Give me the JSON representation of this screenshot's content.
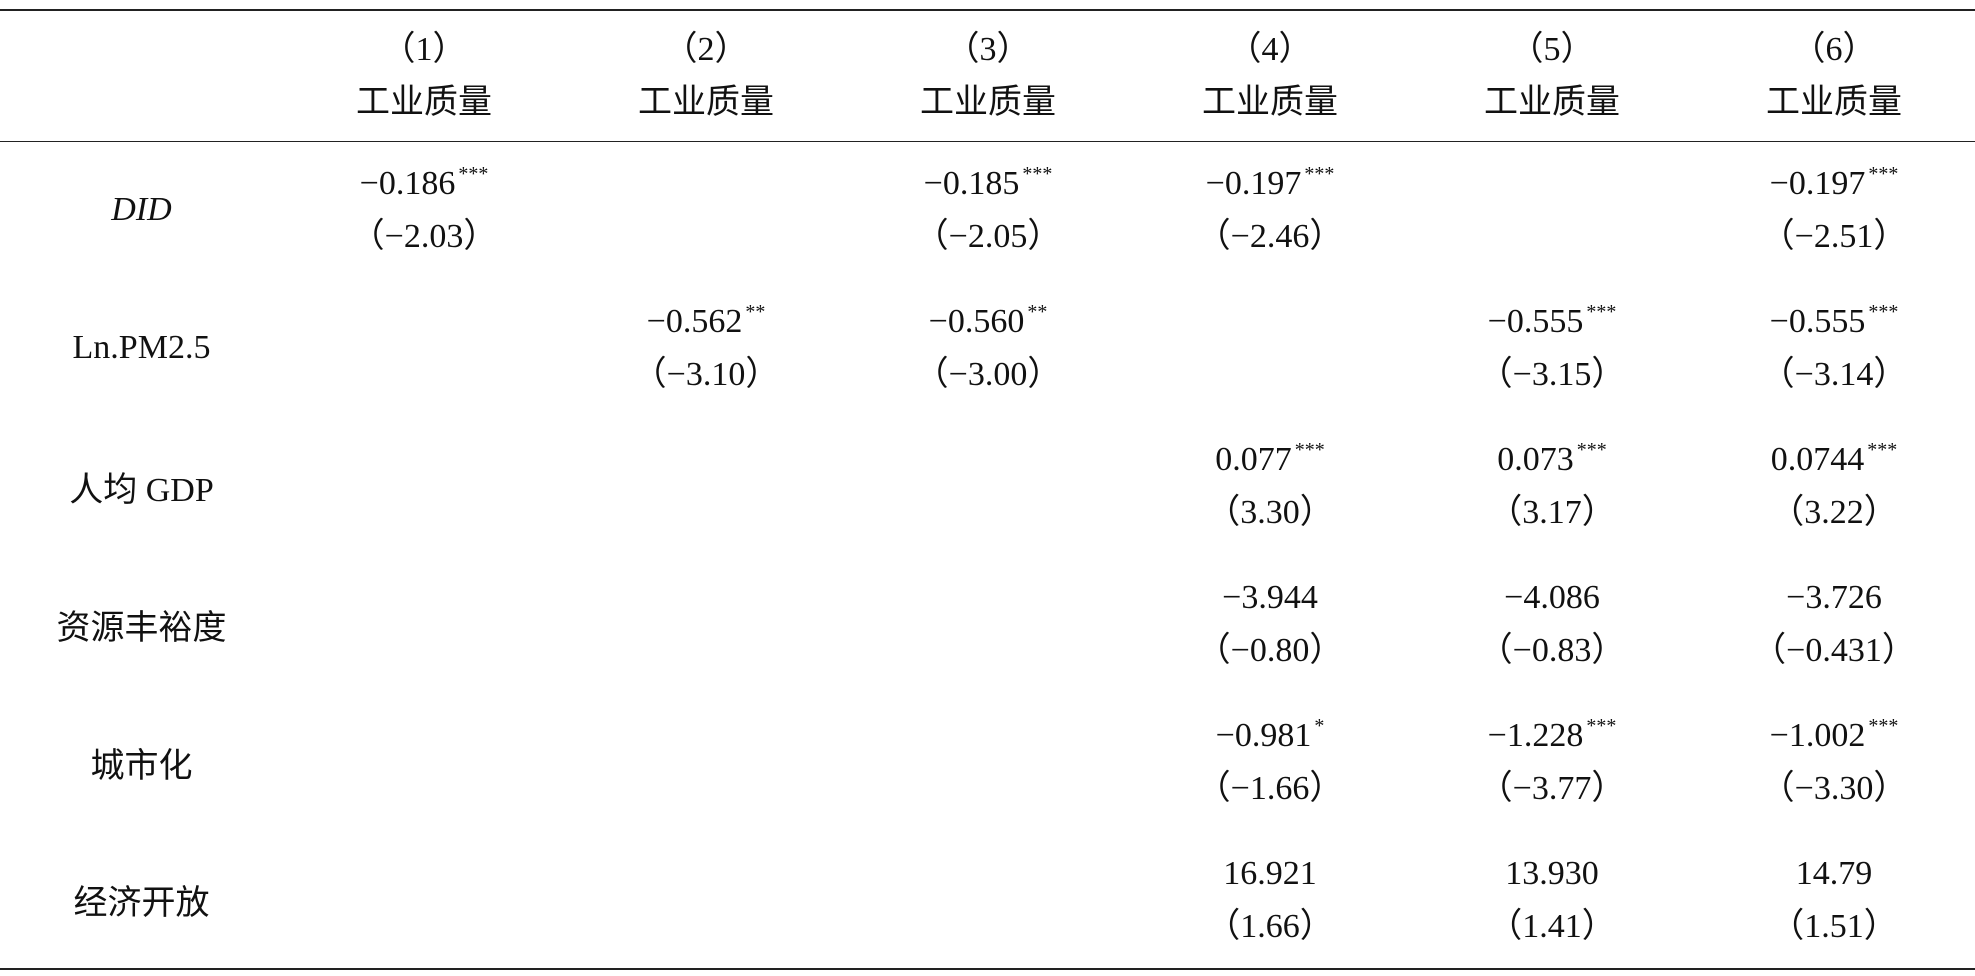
{
  "header": {
    "columns": [
      {
        "number": "（1）",
        "label": "工业质量"
      },
      {
        "number": "（2）",
        "label": "工业质量"
      },
      {
        "number": "（3）",
        "label": "工业质量"
      },
      {
        "number": "（4）",
        "label": "工业质量"
      },
      {
        "number": "（5）",
        "label": "工业质量"
      },
      {
        "number": "（6）",
        "label": "工业质量"
      }
    ]
  },
  "rows": [
    {
      "label": "DID",
      "italic": true,
      "cells": [
        {
          "coef": "−0.186",
          "stars": "***",
          "t": "（−2.03）"
        },
        null,
        {
          "coef": "−0.185",
          "stars": "***",
          "t": "（−2.05）"
        },
        {
          "coef": "−0.197",
          "stars": "***",
          "t": "（−2.46）"
        },
        null,
        {
          "coef": "−0.197",
          "stars": "***",
          "t": "（−2.51）"
        }
      ]
    },
    {
      "label": "Ln.PM2.5",
      "italic": false,
      "cells": [
        null,
        {
          "coef": "−0.562",
          "stars": "**",
          "t": "（−3.10）"
        },
        {
          "coef": "−0.560",
          "stars": "**",
          "t": "（−3.00）"
        },
        null,
        {
          "coef": "−0.555",
          "stars": "***",
          "t": "（−3.15）"
        },
        {
          "coef": "−0.555",
          "stars": "***",
          "t": "（−3.14）"
        }
      ]
    },
    {
      "label": "人均 GDP",
      "italic": false,
      "cells": [
        null,
        null,
        null,
        {
          "coef": "0.077",
          "stars": "***",
          "t": "（3.30）"
        },
        {
          "coef": "0.073",
          "stars": "***",
          "t": "（3.17）"
        },
        {
          "coef": "0.0744",
          "stars": "***",
          "t": "（3.22）"
        }
      ]
    },
    {
      "label": "资源丰裕度",
      "italic": false,
      "cells": [
        null,
        null,
        null,
        {
          "coef": "−3.944",
          "stars": null,
          "t": "（−0.80）"
        },
        {
          "coef": "−4.086",
          "stars": null,
          "t": "（−0.83）"
        },
        {
          "coef": "−3.726",
          "stars": null,
          "t": "（−0.431）"
        }
      ]
    },
    {
      "label": "城市化",
      "italic": false,
      "cells": [
        null,
        null,
        null,
        {
          "coef": "−0.981",
          "stars": "*",
          "t": "（−1.66）"
        },
        {
          "coef": "−1.228",
          "stars": "***",
          "t": "（−3.77）"
        },
        {
          "coef": "−1.002",
          "stars": "***",
          "t": "（−3.30）"
        }
      ]
    },
    {
      "label": "经济开放",
      "italic": false,
      "cells": [
        null,
        null,
        null,
        {
          "coef": "16.921",
          "stars": null,
          "t": "（1.66）"
        },
        {
          "coef": "13.930",
          "stars": null,
          "t": "（1.41）"
        },
        {
          "coef": "14.79",
          "stars": null,
          "t": "（1.51）"
        }
      ]
    }
  ]
}
